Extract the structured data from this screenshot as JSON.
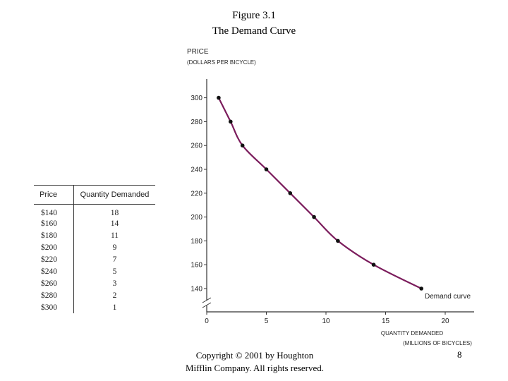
{
  "header": {
    "figure_label": "Figure 3.1",
    "figure_title": "The Demand Curve"
  },
  "table": {
    "headers": [
      "Price",
      "Quantity Demanded"
    ],
    "rows": [
      [
        "$140",
        "18"
      ],
      [
        "$160",
        "14"
      ],
      [
        "$180",
        "11"
      ],
      [
        "$200",
        "9"
      ],
      [
        "$220",
        "7"
      ],
      [
        "$240",
        "5"
      ],
      [
        "$260",
        "3"
      ],
      [
        "$280",
        "2"
      ],
      [
        "$300",
        "1"
      ]
    ]
  },
  "chart_data": {
    "type": "line",
    "title": "The Demand Curve",
    "ylabel_line1": "PRICE",
    "ylabel_line2": "(DOLLARS PER BICYCLE)",
    "xlabel_line1": "QUANTITY DEMANDED",
    "xlabel_line2": "(MILLIONS OF BICYCLES)",
    "xlim": [
      0,
      22
    ],
    "ylim": [
      120,
      320
    ],
    "x_ticks": [
      0,
      5,
      10,
      15,
      20
    ],
    "y_ticks": [
      140,
      160,
      180,
      200,
      220,
      240,
      260,
      280,
      300
    ],
    "axis_break": true,
    "curve_color": "#7b1c5c",
    "series": [
      {
        "name": "Demand curve",
        "points": [
          {
            "x": 1,
            "y": 300
          },
          {
            "x": 2,
            "y": 280
          },
          {
            "x": 3,
            "y": 260
          },
          {
            "x": 5,
            "y": 240
          },
          {
            "x": 7,
            "y": 220
          },
          {
            "x": 9,
            "y": 200
          },
          {
            "x": 11,
            "y": 180
          },
          {
            "x": 14,
            "y": 160
          },
          {
            "x": 18,
            "y": 140
          }
        ]
      }
    ],
    "annotation": "Demand curve"
  },
  "footer": {
    "copyright_line1": "Copyright © 2001 by Houghton",
    "copyright_line2": "Mifflin Company. All rights reserved.",
    "page_number": "8"
  }
}
